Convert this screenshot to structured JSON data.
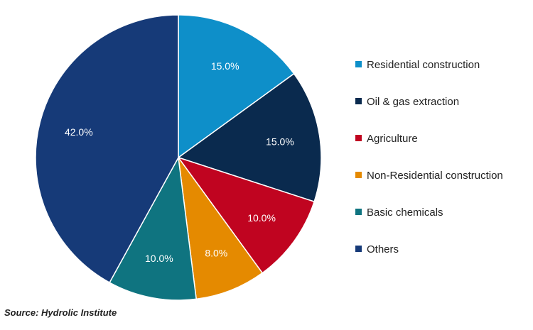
{
  "chart_data": {
    "type": "pie",
    "title": "",
    "slices": [
      {
        "label": "Residential construction",
        "value": 15.0,
        "display": "15.0%",
        "color": "#0E8FC9"
      },
      {
        "label": "Oil & gas extraction",
        "value": 15.0,
        "display": "15.0%",
        "color": "#0A2A4E"
      },
      {
        "label": "Agriculture",
        "value": 10.0,
        "display": "10.0%",
        "color": "#C00420"
      },
      {
        "label": "Non-Residential construction",
        "value": 8.0,
        "display": "8.0%",
        "color": "#E58A00"
      },
      {
        "label": "Basic chemicals",
        "value": 10.0,
        "display": "10.0%",
        "color": "#0F7480"
      },
      {
        "label": "Others",
        "value": 42.0,
        "display": "42.0%",
        "color": "#163A78"
      }
    ],
    "start": "12 o'clock",
    "direction": "clockwise",
    "legend_position": "right"
  },
  "source": "Source: Hydrolic Institute"
}
